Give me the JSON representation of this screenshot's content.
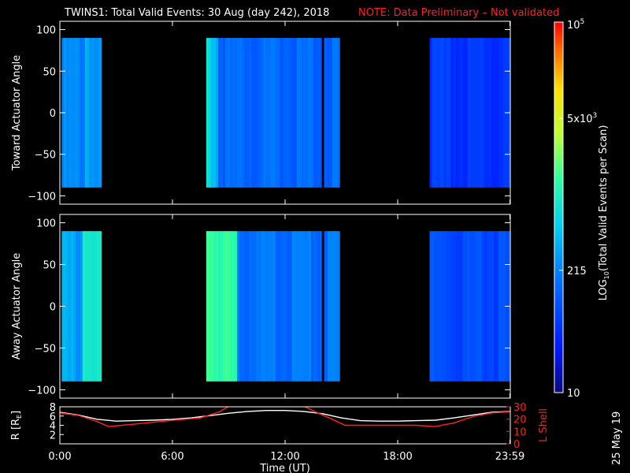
{
  "header": {
    "title": "TWINS1: Total Valid Events: 30 Aug (day 242), 2018",
    "note": "NOTE: Data Preliminary – Not validated"
  },
  "colors": {
    "background": "#000000",
    "axes": "#ffffff",
    "note": "#ff2020",
    "r_line": "#ffffff",
    "lshell_line": "#ff2020"
  },
  "chart_data": [
    {
      "type": "heatmap",
      "ylabel": "Toward Actuator Angle",
      "xlim_hours": [
        0,
        24
      ],
      "ylim": [
        -110,
        110
      ],
      "yticks": [
        "100",
        "50",
        "0",
        "−50",
        "−100"
      ],
      "ytick_values": [
        100,
        50,
        0,
        -50,
        -100
      ],
      "angle_range": [
        -90,
        90
      ],
      "segments": [
        {
          "start": 0.1,
          "end": 2.2,
          "level": 0.33,
          "stripes": [
            {
              "start": 1.3,
              "end": 2.0,
              "level": 0.42
            }
          ]
        },
        {
          "start": 7.8,
          "end": 14.9,
          "level": 0.28,
          "stripes": [
            {
              "start": 7.8,
              "end": 8.4,
              "level": 0.5
            }
          ]
        },
        {
          "start": 19.7,
          "end": 24.0,
          "level": 0.18,
          "stripes": []
        }
      ],
      "gaps": [
        {
          "at": 14.0,
          "width": 0.12
        }
      ]
    },
    {
      "type": "heatmap",
      "ylabel": "Away Actuator Angle",
      "xlim_hours": [
        0,
        24
      ],
      "ylim": [
        -110,
        110
      ],
      "yticks": [
        "100",
        "50",
        "0",
        "−50",
        "−100"
      ],
      "ytick_values": [
        100,
        50,
        0,
        -50,
        -100
      ],
      "angle_range": [
        -90,
        90
      ],
      "segments": [
        {
          "start": 0.1,
          "end": 2.2,
          "level": 0.38,
          "stripes": [
            {
              "start": 1.2,
              "end": 2.2,
              "level": 0.55
            }
          ]
        },
        {
          "start": 7.8,
          "end": 14.9,
          "level": 0.3,
          "stripes": [
            {
              "start": 7.8,
              "end": 9.5,
              "level": 0.62
            }
          ]
        },
        {
          "start": 19.7,
          "end": 24.0,
          "level": 0.22,
          "stripes": []
        }
      ],
      "gaps": [
        {
          "at": 14.0,
          "width": 0.12
        }
      ]
    },
    {
      "type": "line",
      "ylabel_left": "R [R",
      "ylabel_left_sub": "E",
      "ylabel_left_close": "]",
      "ylabel_right": "L Shell",
      "yticks_left": [
        "8",
        "6",
        "4",
        "2"
      ],
      "ytick_values_left": [
        8,
        6,
        4,
        2
      ],
      "ylim_left": [
        0,
        8
      ],
      "yticks_right": [
        "30",
        "20",
        "10",
        "0"
      ],
      "ytick_values_right": [
        30,
        20,
        10,
        0
      ],
      "ylim_right": [
        0,
        30
      ],
      "xticks": [
        "0:00",
        "6:00",
        "12:00",
        "18:00",
        "23:59"
      ],
      "xtick_values": [
        0,
        6,
        12,
        18,
        23.98
      ],
      "xlabel": "Time (UT)",
      "series": [
        {
          "axis": "left",
          "color": "#ffffff",
          "x": [
            0,
            1,
            2,
            3,
            4,
            5,
            6,
            7,
            8,
            9,
            10,
            11,
            12,
            13,
            14,
            15,
            16,
            17,
            18,
            19,
            20,
            21,
            22,
            23,
            24
          ],
          "y": [
            6.8,
            6.2,
            5.3,
            4.9,
            5.0,
            5.1,
            5.3,
            5.6,
            6.1,
            6.6,
            7.0,
            7.2,
            7.2,
            7.0,
            6.5,
            5.6,
            5.0,
            4.9,
            4.9,
            5.0,
            5.1,
            5.6,
            6.2,
            6.8,
            7.0
          ]
        },
        {
          "axis": "right",
          "color": "#ff2020",
          "x": [
            0,
            1,
            2,
            2.6,
            4,
            6,
            7.5,
            8.5,
            9.2,
            12.8,
            13.6,
            14.5,
            15.2,
            17,
            19,
            20,
            21,
            22,
            23,
            24
          ],
          "y": [
            25,
            23,
            18,
            14,
            16,
            19,
            21,
            26,
            32,
            32,
            26,
            20,
            15,
            15,
            15,
            14,
            17,
            22,
            25,
            26
          ]
        }
      ]
    }
  ],
  "colorbar": {
    "ticks": [
      {
        "label": "10",
        "sup": "5",
        "pos": 1.0
      },
      {
        "label": "5x10",
        "sup": "3",
        "pos": 0.74
      },
      {
        "label": "215",
        "sup": "",
        "pos": 0.33
      },
      {
        "label": "10",
        "sup": "",
        "pos": 0.0
      }
    ],
    "title_pre": "LOG",
    "title_sub": "10",
    "title_post": "(Total Valid Events per Scan)"
  },
  "stamp": "25 May 19"
}
